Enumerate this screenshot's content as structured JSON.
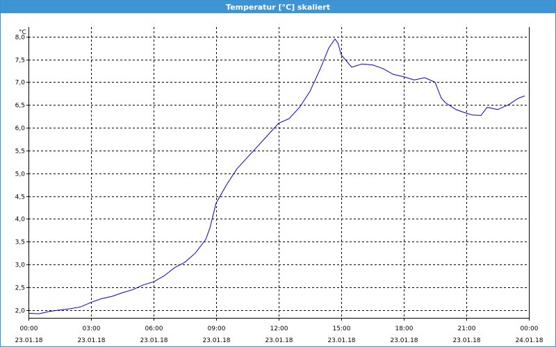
{
  "window": {
    "title": "Temperatur [°C] skaliert"
  },
  "colors": {
    "titlebar": "#3f94d3",
    "series": "#0000c8",
    "grid": "#000000"
  },
  "chart_data": {
    "type": "line",
    "title": "Temperatur [°C] skaliert",
    "ylabel": "°C",
    "xlabel": "",
    "ylim": [
      1.83,
      8.21
    ],
    "grid": true,
    "y_ticks": [
      "2,0",
      "2,5",
      "3,0",
      "3,5",
      "4,0",
      "4,5",
      "5,0",
      "5,5",
      "6,0",
      "6,5",
      "7,0",
      "7,5",
      "8,0"
    ],
    "y_tick_values": [
      2.0,
      2.5,
      3.0,
      3.5,
      4.0,
      4.5,
      5.0,
      5.5,
      6.0,
      6.5,
      7.0,
      7.5,
      8.0
    ],
    "x_ticks": [
      {
        "time": "00:00",
        "date": "23.01.18"
      },
      {
        "time": "03:00",
        "date": "23.01.18"
      },
      {
        "time": "06:00",
        "date": "23.01.18"
      },
      {
        "time": "09:00",
        "date": "23.01.18"
      },
      {
        "time": "12:00",
        "date": "23.01.18"
      },
      {
        "time": "15:00",
        "date": "23.01.18"
      },
      {
        "time": "18:00",
        "date": "23.01.18"
      },
      {
        "time": "21:00",
        "date": "23.01.18"
      },
      {
        "time": "00:00",
        "date": "24.01.18"
      }
    ],
    "x_tick_hours": [
      0,
      3,
      6,
      9,
      12,
      15,
      18,
      21,
      24
    ],
    "xlim_hours": [
      0,
      24
    ],
    "series": [
      {
        "x": [
          0,
          0.5,
          1,
          1.5,
          2,
          2.5,
          3,
          3.5,
          4,
          4.5,
          5,
          5.5,
          6,
          6.5,
          7,
          7.5,
          8,
          8.5,
          8.7,
          9,
          9.5,
          10,
          10.5,
          11,
          11.5,
          12,
          12.5,
          13,
          13.5,
          14,
          14.4,
          14.7,
          14.85,
          15,
          15.5,
          16,
          16.5,
          17,
          17.5,
          18,
          18.5,
          19,
          19.5,
          19.8,
          20,
          20.5,
          21,
          21.3,
          21.7,
          22,
          22.5,
          23,
          23.5,
          23.8
        ],
        "values": [
          1.93,
          1.92,
          1.97,
          2.0,
          2.03,
          2.07,
          2.17,
          2.25,
          2.3,
          2.38,
          2.45,
          2.55,
          2.62,
          2.75,
          2.93,
          3.05,
          3.25,
          3.55,
          3.8,
          4.35,
          4.75,
          5.1,
          5.35,
          5.6,
          5.85,
          6.1,
          6.2,
          6.45,
          6.8,
          7.3,
          7.75,
          7.95,
          7.85,
          7.6,
          7.33,
          7.4,
          7.38,
          7.3,
          7.17,
          7.12,
          7.05,
          7.1,
          7.0,
          6.65,
          6.55,
          6.4,
          6.32,
          6.28,
          6.27,
          6.45,
          6.4,
          6.5,
          6.65,
          6.7
        ]
      }
    ]
  }
}
